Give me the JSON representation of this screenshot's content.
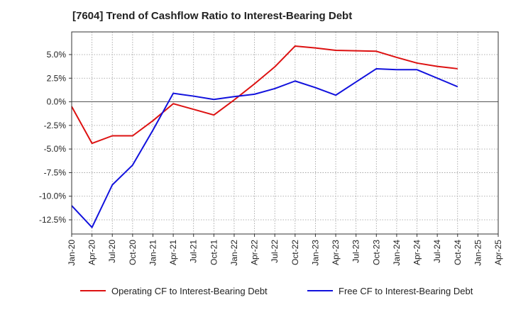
{
  "chart_data": {
    "type": "line",
    "title": "[7604]  Trend of Cashflow Ratio to Interest-Bearing Debt",
    "xlabel": "",
    "ylabel": "",
    "x": [
      "Jan-20",
      "Apr-20",
      "Jul-20",
      "Oct-20",
      "Jan-21",
      "Apr-21",
      "Jul-21",
      "Oct-21",
      "Jan-22",
      "Apr-22",
      "Jul-22",
      "Oct-22",
      "Jan-23",
      "Apr-23",
      "Jul-23",
      "Oct-23",
      "Jan-24",
      "Apr-24",
      "Jul-24",
      "Oct-24",
      "Jan-25",
      "Apr-25"
    ],
    "x_tick_labels": [
      "Jan-20",
      "Apr-20",
      "Jul-20",
      "Oct-20",
      "Jan-21",
      "Apr-21",
      "Jul-21",
      "Oct-21",
      "Jan-22",
      "Apr-22",
      "Jul-22",
      "Oct-22",
      "Jan-23",
      "Apr-23",
      "Jul-23",
      "Oct-23",
      "Jan-24",
      "Apr-24",
      "Jul-24",
      "Oct-24",
      "Jan-25",
      "Apr-25"
    ],
    "y_ticks": [
      5.0,
      2.5,
      0.0,
      -2.5,
      -5.0,
      -7.5,
      -10.0,
      -12.5
    ],
    "y_tick_labels": [
      "5.0%",
      "2.5%",
      "0.0%",
      "-2.5%",
      "-5.0%",
      "-7.5%",
      "-10.0%",
      "-12.5%"
    ],
    "ylim": [
      -14.0,
      7.4
    ],
    "grid": true,
    "legend_position": "bottom",
    "series": [
      {
        "name": "Operating CF to Interest-Bearing Debt",
        "color": "#dd1111",
        "values": [
          -0.5,
          -4.4,
          -3.6,
          -3.6,
          -2.0,
          -0.2,
          -0.8,
          -1.4,
          0.2,
          1.9,
          3.7,
          5.9,
          5.7,
          5.45,
          5.4,
          5.35,
          4.7,
          4.1,
          3.75,
          3.5,
          null,
          null
        ]
      },
      {
        "name": "Free CF to Interest-Bearing Debt",
        "color": "#1111dd",
        "values": [
          -11.0,
          -13.3,
          -8.8,
          -6.7,
          -3.0,
          0.9,
          0.6,
          0.25,
          0.55,
          0.8,
          1.4,
          2.2,
          1.5,
          0.7,
          2.1,
          3.5,
          3.4,
          3.4,
          2.5,
          1.6,
          null,
          null
        ]
      }
    ]
  }
}
